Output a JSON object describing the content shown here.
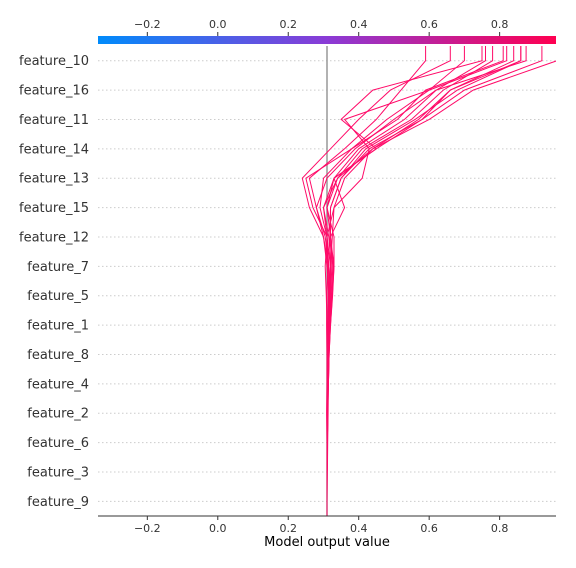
{
  "chart_data": {
    "type": "line",
    "subtype": "shap-decision-plot",
    "xlabel": "Model output value",
    "xlim": [
      -0.34,
      0.96
    ],
    "xticks": [
      -0.2,
      0.0,
      0.2,
      0.4,
      0.6,
      0.8
    ],
    "xtick_labels": [
      "−0.2",
      "0.0",
      "0.2",
      "0.4",
      "0.6",
      "0.8"
    ],
    "base_value": 0.31,
    "colorbar": {
      "position": "top",
      "low_color": "#008bfb",
      "high_color": "#ff0051",
      "range": [
        -0.34,
        0.96
      ]
    },
    "features": [
      "feature_10",
      "feature_16",
      "feature_11",
      "feature_14",
      "feature_13",
      "feature_15",
      "feature_12",
      "feature_7",
      "feature_5",
      "feature_1",
      "feature_8",
      "feature_4",
      "feature_2",
      "feature_6",
      "feature_3",
      "feature_9"
    ],
    "line_color": "#ff0a68",
    "series": [
      {
        "values": [
          0.963,
          0.725,
          0.6,
          0.44,
          0.36,
          0.33,
          0.325,
          0.32,
          0.318,
          0.316,
          0.314,
          0.313,
          0.312,
          0.311,
          0.31,
          0.31
        ]
      },
      {
        "values": [
          0.875,
          0.62,
          0.5,
          0.39,
          0.31,
          0.28,
          0.305,
          0.315,
          0.32,
          0.318,
          0.316,
          0.314,
          0.313,
          0.312,
          0.311,
          0.31
        ]
      },
      {
        "values": [
          0.86,
          0.68,
          0.56,
          0.42,
          0.35,
          0.32,
          0.32,
          0.325,
          0.322,
          0.318,
          0.315,
          0.313,
          0.312,
          0.311,
          0.31,
          0.31
        ]
      },
      {
        "values": [
          0.84,
          0.66,
          0.58,
          0.45,
          0.33,
          0.31,
          0.33,
          0.33,
          0.325,
          0.32,
          0.316,
          0.314,
          0.312,
          0.311,
          0.31,
          0.31
        ]
      },
      {
        "values": [
          0.82,
          0.6,
          0.48,
          0.38,
          0.25,
          0.27,
          0.31,
          0.32,
          0.318,
          0.315,
          0.313,
          0.312,
          0.311,
          0.31,
          0.31,
          0.31
        ]
      },
      {
        "values": [
          0.78,
          0.64,
          0.55,
          0.41,
          0.34,
          0.31,
          0.32,
          0.328,
          0.324,
          0.319,
          0.315,
          0.313,
          0.312,
          0.311,
          0.31,
          0.31
        ]
      },
      {
        "values": [
          0.76,
          0.62,
          0.53,
          0.4,
          0.33,
          0.3,
          0.315,
          0.322,
          0.32,
          0.317,
          0.314,
          0.312,
          0.311,
          0.31,
          0.31,
          0.31
        ]
      },
      {
        "values": [
          0.66,
          0.49,
          0.4,
          0.32,
          0.24,
          0.26,
          0.3,
          0.31,
          0.315,
          0.313,
          0.312,
          0.311,
          0.31,
          0.31,
          0.31,
          0.31
        ]
      },
      {
        "values": [
          0.75,
          0.44,
          0.35,
          0.45,
          0.33,
          0.36,
          0.32,
          0.33,
          0.326,
          0.32,
          0.316,
          0.314,
          0.312,
          0.311,
          0.31,
          0.31
        ]
      },
      {
        "values": [
          0.7,
          0.6,
          0.36,
          0.43,
          0.41,
          0.33,
          0.31,
          0.305,
          0.308,
          0.31,
          0.311,
          0.31,
          0.309,
          0.31,
          0.31,
          0.31
        ]
      },
      {
        "values": [
          0.59,
          0.52,
          0.45,
          0.36,
          0.26,
          0.28,
          0.3,
          0.314,
          0.316,
          0.314,
          0.312,
          0.311,
          0.31,
          0.31,
          0.31,
          0.31
        ]
      },
      {
        "values": [
          0.86,
          0.66,
          0.57,
          0.44,
          0.34,
          0.3,
          0.31,
          0.312,
          0.31,
          0.309,
          0.31,
          0.311,
          0.31,
          0.31,
          0.31,
          0.31
        ]
      },
      {
        "values": [
          0.92,
          0.7,
          0.58,
          0.43,
          0.35,
          0.32,
          0.318,
          0.32,
          0.315,
          0.312,
          0.311,
          0.31,
          0.31,
          0.31,
          0.31,
          0.31
        ]
      },
      {
        "values": [
          0.81,
          0.59,
          0.51,
          0.38,
          0.3,
          0.29,
          0.31,
          0.315,
          0.314,
          0.312,
          0.311,
          0.31,
          0.31,
          0.31,
          0.31,
          0.31
        ]
      }
    ]
  }
}
